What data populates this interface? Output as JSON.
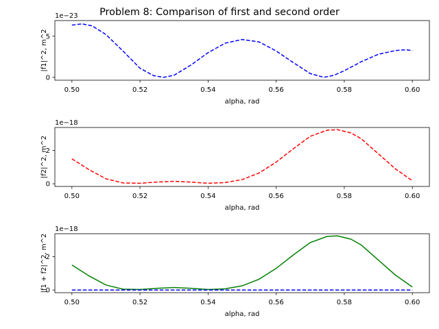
{
  "title": "Problem 8: Comparison of first and second order",
  "colors": {
    "blue": "#0000ff",
    "red": "#ff0000",
    "green": "#008000",
    "axes": "#000000"
  },
  "chart_data": [
    {
      "type": "line",
      "xlabel": "alpha, rad",
      "ylabel": "|f1|^2, m^2",
      "offset_text": "1e−23",
      "x_ticks": [
        0.5,
        0.52,
        0.54,
        0.56,
        0.58,
        0.6
      ],
      "x_tick_labels": [
        "0.50",
        "0.52",
        "0.54",
        "0.56",
        "0.58",
        "0.60"
      ],
      "y_ticks": [
        0,
        5
      ],
      "y_tick_labels": [
        "0",
        "5"
      ],
      "xlim": [
        0.495,
        0.605
      ],
      "ylim": [
        -0.35,
        6.9
      ],
      "series": [
        {
          "color": "blue",
          "style": "dashed",
          "x": [
            0.5,
            0.503,
            0.506,
            0.51,
            0.515,
            0.52,
            0.524,
            0.527,
            0.53,
            0.535,
            0.54,
            0.545,
            0.55,
            0.555,
            0.56,
            0.565,
            0.57,
            0.574,
            0.577,
            0.58,
            0.585,
            0.59,
            0.595,
            0.598,
            0.6
          ],
          "y": [
            6.35,
            6.5,
            6.25,
            5.2,
            3.2,
            1.1,
            0.2,
            0.0,
            0.25,
            1.5,
            3.0,
            4.15,
            4.6,
            4.3,
            3.2,
            1.8,
            0.45,
            0.0,
            0.25,
            0.8,
            1.9,
            2.8,
            3.25,
            3.35,
            3.25
          ]
        }
      ]
    },
    {
      "type": "line",
      "xlabel": "alpha, rad",
      "ylabel": "|f2|^2, m^2",
      "offset_text": "1e−18",
      "x_ticks": [
        0.5,
        0.52,
        0.54,
        0.56,
        0.58,
        0.6
      ],
      "x_tick_labels": [
        "0.50",
        "0.52",
        "0.54",
        "0.56",
        "0.58",
        "0.60"
      ],
      "y_ticks": [
        0,
        2
      ],
      "y_tick_labels": [
        "0",
        "2"
      ],
      "xlim": [
        0.495,
        0.605
      ],
      "ylim": [
        -0.16,
        3.38
      ],
      "series": [
        {
          "color": "red",
          "style": "dashed",
          "x": [
            0.5,
            0.505,
            0.51,
            0.515,
            0.52,
            0.525,
            0.53,
            0.535,
            0.54,
            0.545,
            0.55,
            0.555,
            0.56,
            0.565,
            0.57,
            0.575,
            0.578,
            0.582,
            0.585,
            0.59,
            0.595,
            0.6
          ],
          "y": [
            1.5,
            0.85,
            0.3,
            0.05,
            0.03,
            0.1,
            0.15,
            0.1,
            0.03,
            0.07,
            0.25,
            0.65,
            1.3,
            2.1,
            2.85,
            3.22,
            3.25,
            3.05,
            2.7,
            1.8,
            0.9,
            0.18
          ]
        }
      ]
    },
    {
      "type": "line",
      "xlabel": "alpha, rad",
      "ylabel": "|f1 + f2|^2, m^2",
      "offset_text": "1e−18",
      "x_ticks": [
        0.5,
        0.52,
        0.54,
        0.56,
        0.58,
        0.6
      ],
      "x_tick_labels": [
        "0.50",
        "0.52",
        "0.54",
        "0.56",
        "0.58",
        "0.60"
      ],
      "y_ticks": [
        0,
        2
      ],
      "y_tick_labels": [
        "0",
        "2"
      ],
      "xlim": [
        0.495,
        0.605
      ],
      "ylim": [
        -0.16,
        3.38
      ],
      "series": [
        {
          "color": "green",
          "style": "solid",
          "x": [
            0.5,
            0.505,
            0.51,
            0.515,
            0.52,
            0.525,
            0.53,
            0.535,
            0.54,
            0.545,
            0.55,
            0.555,
            0.56,
            0.565,
            0.57,
            0.575,
            0.578,
            0.582,
            0.585,
            0.59,
            0.595,
            0.6
          ],
          "y": [
            1.5,
            0.85,
            0.3,
            0.05,
            0.03,
            0.1,
            0.15,
            0.1,
            0.03,
            0.07,
            0.25,
            0.65,
            1.3,
            2.1,
            2.85,
            3.22,
            3.25,
            3.05,
            2.7,
            1.8,
            0.9,
            0.18
          ]
        },
        {
          "color": "blue",
          "style": "dashed",
          "x": [
            0.5,
            0.6
          ],
          "y": [
            0.0,
            0.0
          ]
        }
      ]
    }
  ]
}
